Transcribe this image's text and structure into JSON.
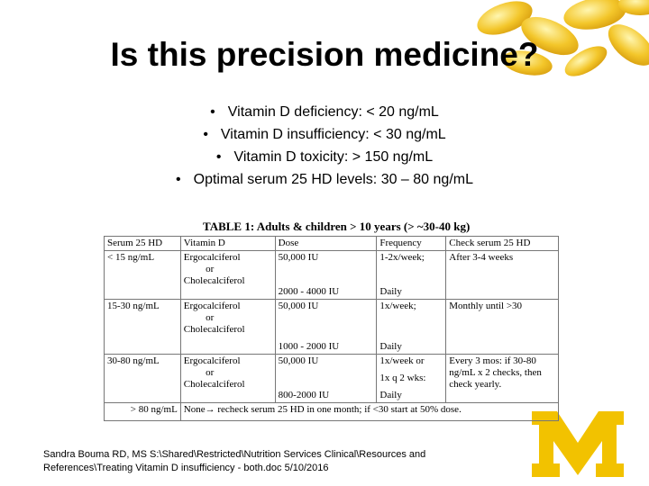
{
  "title": "Is this precision medicine?",
  "bullets": [
    "Vitamin D deficiency:  < 20 ng/mL",
    "Vitamin D insufficiency: < 30 ng/mL",
    "Vitamin D toxicity:  > 150 ng/mL",
    "Optimal serum 25 HD levels:  30 – 80 ng/mL"
  ],
  "table": {
    "title": "TABLE 1: Adults & children > 10 years (> ~30-40 kg)",
    "header": [
      "Serum 25 HD",
      "Vitamin D",
      "Dose",
      "Frequency",
      "Check serum 25 HD"
    ],
    "rows": [
      [
        "< 15 ng/mL",
        [
          "Ergocalciferol",
          "or",
          "Cholecalciferol"
        ],
        [
          "50,000 IU",
          "2000 - 4000 IU"
        ],
        [
          "1-2x/week;",
          "Daily"
        ],
        "After 3-4 weeks"
      ],
      [
        "15-30 ng/mL",
        [
          "Ergocalciferol",
          "or",
          "Cholecalciferol"
        ],
        [
          "50,000 IU",
          "1000 - 2000 IU"
        ],
        [
          "1x/week;",
          "Daily"
        ],
        "Monthly until >30"
      ],
      [
        "30-80 ng/mL",
        [
          "Ergocalciferol",
          "or",
          "Cholecalciferol"
        ],
        [
          "50,000 IU",
          "800-2000 IU"
        ],
        [
          "1x/week or",
          "1x q 2 wks:",
          "Daily"
        ],
        "Every 3 mos: if 30-80 ng/mL x 2 checks, then check yearly."
      ],
      [
        "> 80 ng/mL",
        "None→ recheck serum 25 HD in one month; if <30 start at 50% dose."
      ]
    ]
  },
  "footer": [
    "Sandra Bouma RD, MS  S:\\Shared\\Restricted\\Nutrition Services Clinical\\Resources and",
    "References\\Treating Vitamin D insufficiency - both.doc      5/10/2016"
  ]
}
